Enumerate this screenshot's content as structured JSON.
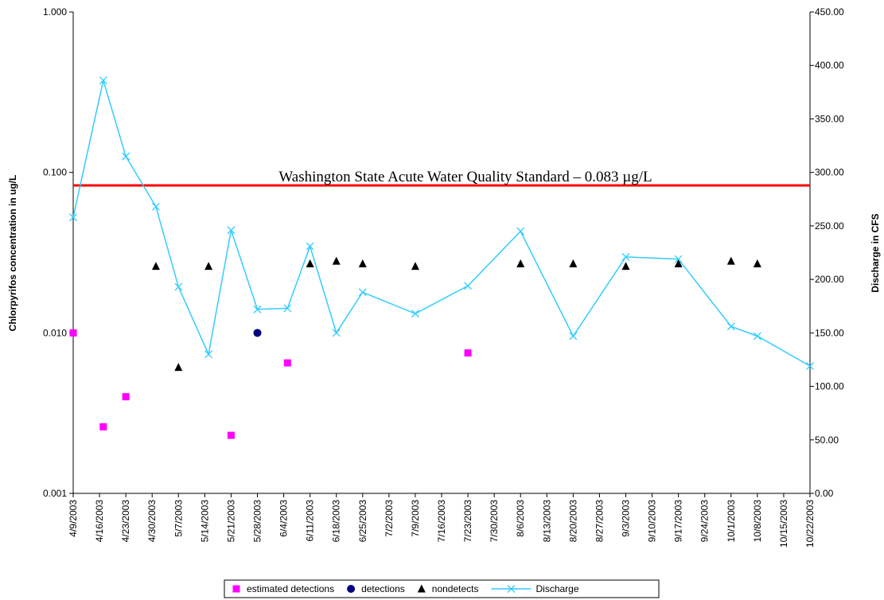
{
  "chart_data": {
    "type": "scatter",
    "ylabel": "Chlorpyrifos concentration in ug/L",
    "y2label": "Discharge in CFS",
    "ylog": true,
    "ylim": [
      0.001,
      1
    ],
    "yticks": [
      {
        "value": 0.001,
        "label": "0.001"
      },
      {
        "value": 0.01,
        "label": "0.010"
      },
      {
        "value": 0.1,
        "label": "0.100"
      },
      {
        "value": 1,
        "label": "1.000"
      }
    ],
    "y2lim": [
      0,
      450
    ],
    "y2ticks": [
      {
        "value": 0,
        "label": "0.00"
      },
      {
        "value": 50,
        "label": "50.00"
      },
      {
        "value": 100,
        "label": "100.00"
      },
      {
        "value": 150,
        "label": "150.00"
      },
      {
        "value": 200,
        "label": "200.00"
      },
      {
        "value": 250,
        "label": "250.00"
      },
      {
        "value": 300,
        "label": "300.00"
      },
      {
        "value": 350,
        "label": "350.00"
      },
      {
        "value": 400,
        "label": "400.00"
      },
      {
        "value": 450,
        "label": "450.00"
      }
    ],
    "xlim": [
      "4/9/2003",
      "10/22/2003"
    ],
    "xticks": [
      "4/9/2003",
      "4/16/2003",
      "4/23/2003",
      "4/30/2003",
      "5/7/2003",
      "5/14/2003",
      "5/21/2003",
      "5/28/2003",
      "6/4/2003",
      "6/11/2003",
      "6/18/2003",
      "6/25/2003",
      "7/2/2003",
      "7/9/2003",
      "7/16/2003",
      "7/23/2003",
      "7/30/2003",
      "8/6/2003",
      "8/13/2003",
      "8/20/2003",
      "8/27/2003",
      "9/3/2003",
      "9/10/2003",
      "9/17/2003",
      "9/24/2003",
      "10/1/2003",
      "10/8/2003",
      "10/15/2003",
      "10/22/2003"
    ],
    "reference_line": {
      "value": 0.083,
      "label": "Washington State Acute Water Quality Standard – 0.083 µg/L",
      "color": "#ff0000"
    },
    "legend": "bottom",
    "series": [
      {
        "name": "estimated detections",
        "color": "#ff00ff",
        "marker": "square",
        "x": [
          "4/9/2003",
          "4/17/2003",
          "4/23/2003",
          "5/21/2003",
          "6/5/2003",
          "7/23/2003"
        ],
        "values": [
          0.01,
          0.0026,
          0.004,
          0.0023,
          0.0065,
          0.0075
        ]
      },
      {
        "name": "detections",
        "color": "#000080",
        "marker": "circle",
        "x": [
          "5/28/2003"
        ],
        "values": [
          0.01
        ]
      },
      {
        "name": "nondetects",
        "color": "#000000",
        "marker": "triangle",
        "x": [
          "5/1/2003",
          "5/7/2003",
          "5/15/2003",
          "6/11/2003",
          "6/18/2003",
          "6/25/2003",
          "7/9/2003",
          "8/6/2003",
          "8/20/2003",
          "9/3/2003",
          "9/17/2003",
          "10/1/2003",
          "10/8/2003"
        ],
        "values": [
          0.026,
          0.0061,
          0.026,
          0.027,
          0.028,
          0.027,
          0.026,
          0.027,
          0.027,
          0.026,
          0.027,
          0.028,
          0.027
        ]
      },
      {
        "name": "Discharge",
        "color": "#33ccff",
        "marker": "x",
        "line": true,
        "axis": "y2",
        "x": [
          "4/9/2003",
          "4/17/2003",
          "4/23/2003",
          "5/1/2003",
          "5/7/2003",
          "5/15/2003",
          "5/21/2003",
          "5/28/2003",
          "6/5/2003",
          "6/11/2003",
          "6/18/2003",
          "6/25/2003",
          "7/9/2003",
          "7/23/2003",
          "8/6/2003",
          "8/20/2003",
          "9/3/2003",
          "9/17/2003",
          "10/1/2003",
          "10/8/2003",
          "10/22/2003"
        ],
        "values": [
          258,
          386,
          315,
          268,
          193,
          130,
          246,
          172,
          173,
          231,
          150,
          188,
          168,
          194,
          245,
          147,
          221,
          219,
          156,
          147,
          119
        ]
      }
    ]
  }
}
